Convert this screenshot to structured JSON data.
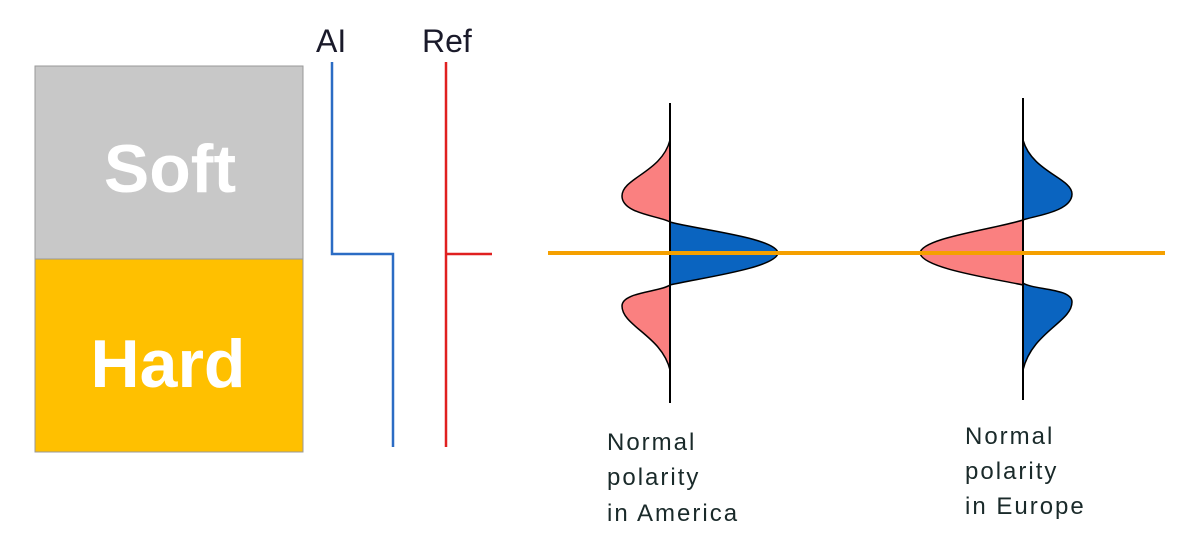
{
  "layers": [
    {
      "label": "Soft"
    },
    {
      "label": "Hard"
    }
  ],
  "logs": [
    {
      "label": "AI"
    },
    {
      "label": "Ref"
    }
  ],
  "wavelets": [
    {
      "caption": [
        "Normal",
        "polarity",
        "in America"
      ]
    },
    {
      "caption": [
        "Normal",
        "polarity",
        "in Europe"
      ]
    }
  ]
}
